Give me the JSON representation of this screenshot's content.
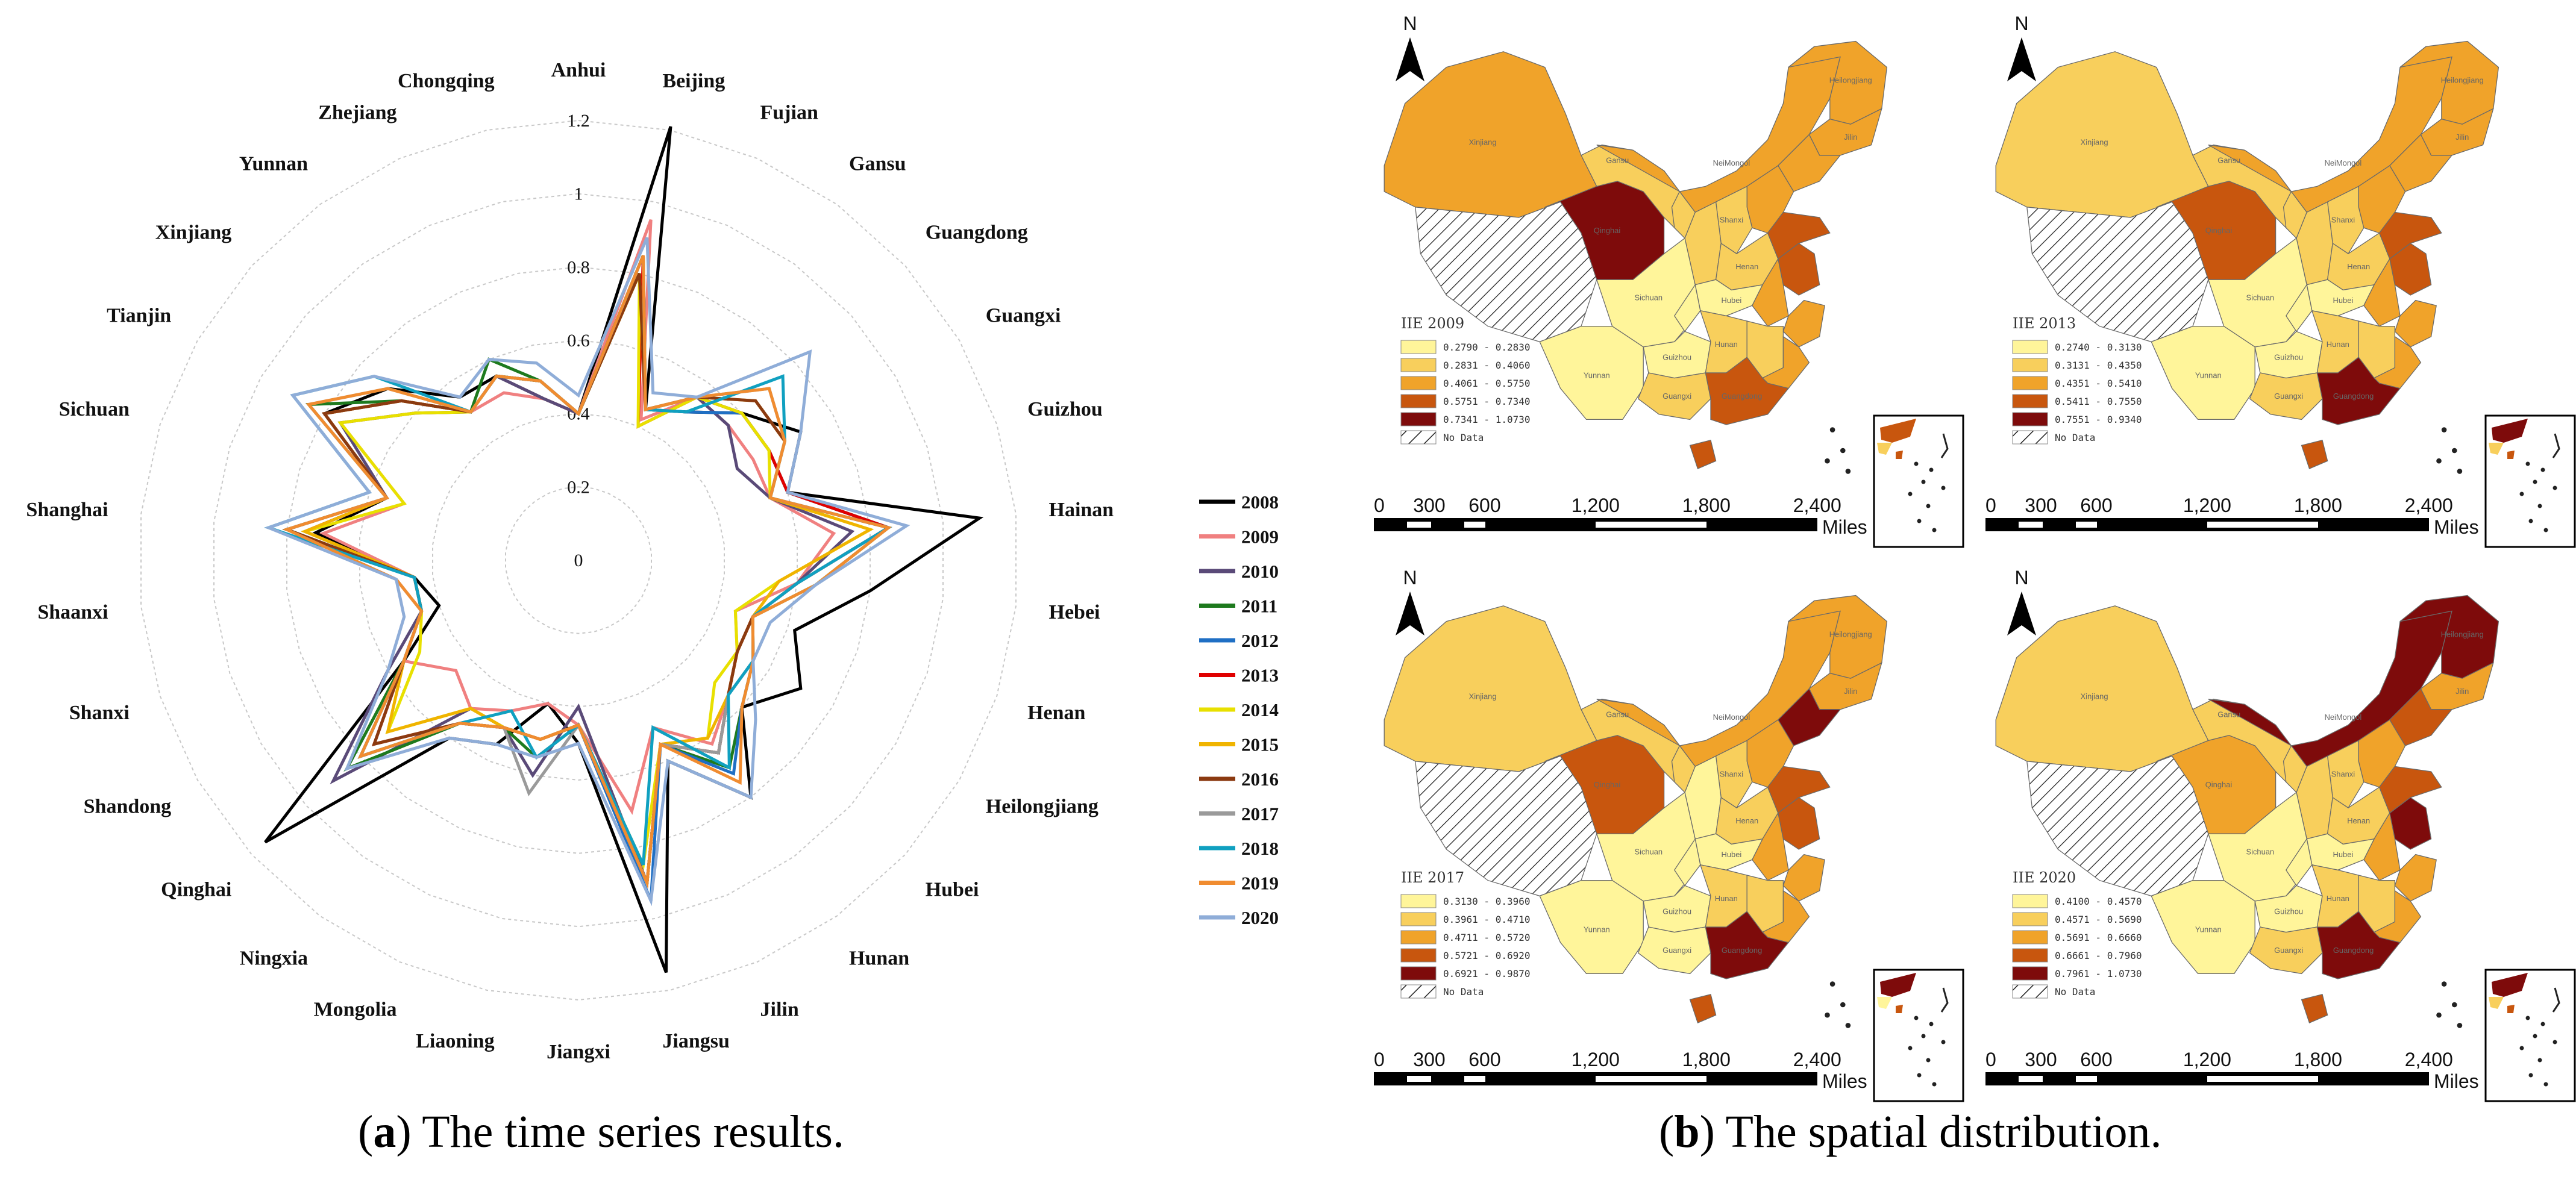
{
  "captions": {
    "a_letter": "a",
    "a_text": " The time series results.",
    "b_letter": "b",
    "b_text": " The spatial distribution."
  },
  "chart_data": [
    {
      "type": "radar",
      "title": "The time series results.",
      "axes": [
        "Anhui",
        "Beijing",
        "Fujian",
        "Gansu",
        "Guangdong",
        "Guangxi",
        "Guizhou",
        "Hainan",
        "Hebei",
        "Henan",
        "Heilongjiang",
        "Hubei",
        "Hunan",
        "Jilin",
        "Jiangsu",
        "Jiangxi",
        "Liaoning",
        "Mongolia",
        "Ningxia",
        "Qinghai",
        "Shandong",
        "Shanxi",
        "Shaanxi",
        "Shanghai",
        "Sichuan",
        "Tianjin",
        "Xinjiang",
        "Yunnan",
        "Zhejiang",
        "Chongqing"
      ],
      "rlim": [
        0,
        1.2
      ],
      "ticks": [
        0,
        0.2,
        0.4,
        0.6,
        0.8,
        1,
        1.2
      ],
      "tick_labels": [
        "0",
        "0.2",
        "0.4",
        "0.6",
        "0.8",
        "1",
        "1.2"
      ],
      "series": [
        {
          "name": "2008",
          "color": "#000000",
          "values": [
            0.4,
            1.21,
            0.45,
            0.5,
            0.6,
            0.7,
            0.6,
            1.1,
            0.8,
            0.62,
            0.7,
            0.6,
            0.8,
            0.6,
            1.15,
            0.5,
            0.4,
            0.55,
            0.6,
            1.15,
            0.55,
            0.4,
            0.45,
            0.72,
            0.55,
            0.8,
            0.7,
            0.55,
            0.55,
            0.45
          ]
        },
        {
          "name": "2009",
          "color": "#f08080",
          "values": [
            0.4,
            0.95,
            0.42,
            0.55,
            0.55,
            0.55,
            0.55,
            0.7,
            0.6,
            0.45,
            0.5,
            0.55,
            0.62,
            0.5,
            0.7,
            0.45,
            0.4,
            0.45,
            0.5,
            0.45,
            0.55,
            0.45,
            0.45,
            0.7,
            0.5,
            0.75,
            0.6,
            0.5,
            0.5,
            0.45
          ]
        },
        {
          "name": "2010",
          "color": "#5a4a78",
          "values": [
            0.4,
            0.85,
            0.45,
            0.55,
            0.55,
            0.5,
            0.55,
            0.75,
            0.6,
            0.5,
            0.5,
            0.55,
            0.65,
            0.55,
            0.9,
            0.4,
            0.6,
            0.5,
            0.5,
            0.9,
            0.6,
            0.45,
            0.45,
            0.75,
            0.55,
            0.75,
            0.6,
            0.5,
            0.55,
            0.45
          ]
        },
        {
          "name": "2011",
          "color": "#1e7a1e",
          "values": [
            0.4,
            0.85,
            0.45,
            0.55,
            0.6,
            0.6,
            0.6,
            0.85,
            0.65,
            0.5,
            0.55,
            0.6,
            0.7,
            0.55,
            0.9,
            0.45,
            0.55,
            0.5,
            0.55,
            0.85,
            0.55,
            0.45,
            0.45,
            0.8,
            0.55,
            0.85,
            0.65,
            0.5,
            0.6,
            0.5
          ]
        },
        {
          "name": "2012",
          "color": "#1f6fc4",
          "values": [
            0.4,
            0.85,
            0.45,
            0.5,
            0.6,
            0.6,
            0.6,
            0.85,
            0.6,
            0.5,
            0.55,
            0.6,
            0.72,
            0.55,
            0.95,
            0.45,
            0.5,
            0.5,
            0.55,
            0.8,
            0.55,
            0.45,
            0.45,
            0.8,
            0.55,
            0.8,
            0.65,
            0.5,
            0.55,
            0.5
          ]
        },
        {
          "name": "2013",
          "color": "#e00000",
          "values": [
            0.4,
            0.85,
            0.4,
            0.55,
            0.6,
            0.6,
            0.6,
            0.85,
            0.6,
            0.5,
            0.5,
            0.55,
            0.65,
            0.55,
            0.9,
            0.45,
            0.5,
            0.5,
            0.55,
            0.75,
            0.55,
            0.45,
            0.45,
            0.75,
            0.55,
            0.8,
            0.65,
            0.5,
            0.55,
            0.5
          ]
        },
        {
          "name": "2014",
          "color": "#e8e000",
          "values": [
            0.4,
            0.8,
            0.4,
            0.55,
            0.6,
            0.6,
            0.55,
            0.8,
            0.55,
            0.45,
            0.5,
            0.5,
            0.6,
            0.55,
            0.85,
            0.45,
            0.5,
            0.5,
            0.5,
            0.7,
            0.5,
            0.45,
            0.45,
            0.75,
            0.5,
            0.75,
            0.6,
            0.5,
            0.55,
            0.5
          ]
        },
        {
          "name": "2015",
          "color": "#f0b400",
          "values": [
            0.4,
            0.8,
            0.45,
            0.55,
            0.65,
            0.65,
            0.55,
            0.8,
            0.55,
            0.5,
            0.5,
            0.55,
            0.6,
            0.55,
            0.9,
            0.45,
            0.5,
            0.5,
            0.5,
            0.7,
            0.55,
            0.45,
            0.45,
            0.75,
            0.55,
            0.8,
            0.65,
            0.5,
            0.55,
            0.5
          ]
        },
        {
          "name": "2016",
          "color": "#8b3a10",
          "values": [
            0.4,
            0.8,
            0.45,
            0.55,
            0.65,
            0.65,
            0.55,
            0.85,
            0.6,
            0.5,
            0.5,
            0.55,
            0.65,
            0.55,
            0.9,
            0.45,
            0.5,
            0.5,
            0.55,
            0.75,
            0.55,
            0.45,
            0.45,
            0.8,
            0.55,
            0.8,
            0.65,
            0.5,
            0.55,
            0.5
          ]
        },
        {
          "name": "2017",
          "color": "#9a9a9a",
          "values": [
            0.4,
            0.85,
            0.45,
            0.55,
            0.7,
            0.65,
            0.55,
            0.85,
            0.6,
            0.5,
            0.55,
            0.55,
            0.65,
            0.55,
            0.9,
            0.45,
            0.65,
            0.5,
            0.55,
            0.8,
            0.55,
            0.45,
            0.5,
            0.8,
            0.55,
            0.85,
            0.7,
            0.5,
            0.55,
            0.5
          ]
        },
        {
          "name": "2018",
          "color": "#10a0c0",
          "values": [
            0.4,
            0.85,
            0.45,
            0.5,
            0.75,
            0.65,
            0.55,
            0.85,
            0.6,
            0.5,
            0.55,
            0.55,
            0.7,
            0.5,
            0.85,
            0.45,
            0.55,
            0.45,
            0.55,
            0.8,
            0.55,
            0.45,
            0.45,
            0.85,
            0.6,
            0.9,
            0.75,
            0.5,
            0.55,
            0.5
          ]
        },
        {
          "name": "2019",
          "color": "#f08c30",
          "values": [
            0.4,
            0.85,
            0.45,
            0.55,
            0.7,
            0.65,
            0.55,
            0.85,
            0.65,
            0.5,
            0.55,
            0.6,
            0.75,
            0.55,
            0.9,
            0.45,
            0.5,
            0.5,
            0.55,
            0.8,
            0.55,
            0.45,
            0.5,
            0.8,
            0.55,
            0.85,
            0.7,
            0.5,
            0.55,
            0.5
          ]
        },
        {
          "name": "2020",
          "color": "#8fadd8",
          "values": [
            0.45,
            0.9,
            0.5,
            0.55,
            0.85,
            0.7,
            0.6,
            0.9,
            0.65,
            0.55,
            0.55,
            0.65,
            0.8,
            0.6,
            0.95,
            0.5,
            0.55,
            0.55,
            0.6,
            0.85,
            0.6,
            0.5,
            0.5,
            0.85,
            0.6,
            0.9,
            0.75,
            0.55,
            0.6,
            0.55
          ]
        }
      ]
    },
    {
      "type": "choropleth",
      "title": "The spatial distribution.",
      "no_data_label": "No Data",
      "color_classes": [
        "#fff59a",
        "#f8cf5c",
        "#f0a32a",
        "#c8560e",
        "#7e0b0b"
      ],
      "no_data_color": "#ffffff",
      "compass_label": "N",
      "scale": {
        "ticks": [
          "0",
          "300",
          "600",
          "1,200",
          "1,800",
          "2,400"
        ],
        "unit": "Miles"
      },
      "map_labels": [
        "Xinjiang",
        "Gansu",
        "Qinghai",
        "NeiMongol",
        "Heilongjiang",
        "Jilin",
        "Shanxi",
        "Henan",
        "Hubei",
        "Sichuan",
        "Yunnan",
        "Guizhou",
        "Hunan",
        "Guangxi",
        "Guangdong"
      ],
      "maps": [
        {
          "title": "IIE 2009",
          "breaks": [
            "0.2790 - 0.2830",
            "0.2831 - 0.4060",
            "0.4061 - 0.5750",
            "0.5751 - 0.7340",
            "0.7341 - 1.0730"
          ],
          "classes": {
            "xinjiang": 2,
            "tibet": -1,
            "qinghai": 4,
            "gansu": 1,
            "neimongol": 2,
            "heilongjiang": 2,
            "jilin": 2,
            "liaoning": 2,
            "beijing": 4,
            "hebei": 2,
            "shanxi": 1,
            "shaanxi": 1,
            "ningxia": 1,
            "henan": 1,
            "shandong": 3,
            "jiangsu": 3,
            "anhui": 2,
            "hubei": 0,
            "sichuan": 0,
            "chongqing": 0,
            "yunnan": 0,
            "guizhou": 0,
            "hunan": 1,
            "jiangxi": 1,
            "zhejiang": 2,
            "fujian": 2,
            "guangxi": 1,
            "guangdong": 3,
            "hainan": 3
          }
        },
        {
          "title": "IIE 2013",
          "breaks": [
            "0.2740 - 0.3130",
            "0.3131 - 0.4350",
            "0.4351 - 0.5410",
            "0.5411 - 0.7550",
            "0.7551 - 0.9340"
          ],
          "classes": {
            "xinjiang": 1,
            "tibet": -1,
            "qinghai": 3,
            "gansu": 1,
            "neimongol": 2,
            "heilongjiang": 2,
            "jilin": 2,
            "liaoning": 2,
            "beijing": 4,
            "hebei": 2,
            "shanxi": 1,
            "shaanxi": 1,
            "ningxia": 1,
            "henan": 1,
            "shandong": 3,
            "jiangsu": 3,
            "anhui": 2,
            "hubei": 0,
            "sichuan": 0,
            "chongqing": 0,
            "yunnan": 0,
            "guizhou": 0,
            "hunan": 1,
            "jiangxi": 1,
            "zhejiang": 2,
            "fujian": 2,
            "guangxi": 1,
            "guangdong": 4,
            "hainan": 3
          }
        },
        {
          "title": "IIE 2017",
          "breaks": [
            "0.3130 - 0.3960",
            "0.3961 - 0.4710",
            "0.4711 - 0.5720",
            "0.5721 - 0.6920",
            "0.6921 - 0.9870"
          ],
          "classes": {
            "xinjiang": 1,
            "tibet": -1,
            "qinghai": 3,
            "gansu": 1,
            "neimongol": 2,
            "heilongjiang": 2,
            "jilin": 2,
            "liaoning": 4,
            "beijing": 4,
            "hebei": 2,
            "shanxi": 1,
            "shaanxi": 0,
            "ningxia": 1,
            "henan": 1,
            "shandong": 3,
            "jiangsu": 3,
            "anhui": 2,
            "hubei": 0,
            "sichuan": 0,
            "chongqing": 0,
            "yunnan": 0,
            "guizhou": 0,
            "hunan": 1,
            "jiangxi": 1,
            "zhejiang": 2,
            "fujian": 2,
            "guangxi": 0,
            "guangdong": 4,
            "hainan": 3
          }
        },
        {
          "title": "IIE 2020",
          "breaks": [
            "0.4100 - 0.4570",
            "0.4571 - 0.5690",
            "0.5691 - 0.6660",
            "0.6661 - 0.7960",
            "0.7961 - 1.0730"
          ],
          "classes": {
            "xinjiang": 1,
            "tibet": -1,
            "qinghai": 2,
            "gansu": 1,
            "neimongol": 4,
            "heilongjiang": 4,
            "jilin": 2,
            "liaoning": 3,
            "beijing": 4,
            "hebei": 2,
            "shanxi": 1,
            "shaanxi": 1,
            "ningxia": 1,
            "henan": 1,
            "shandong": 3,
            "jiangsu": 4,
            "anhui": 2,
            "hubei": 0,
            "sichuan": 0,
            "chongqing": 0,
            "yunnan": 0,
            "guizhou": 0,
            "hunan": 1,
            "jiangxi": 1,
            "zhejiang": 2,
            "fujian": 2,
            "guangxi": 1,
            "guangdong": 4,
            "hainan": 3
          }
        }
      ]
    }
  ]
}
